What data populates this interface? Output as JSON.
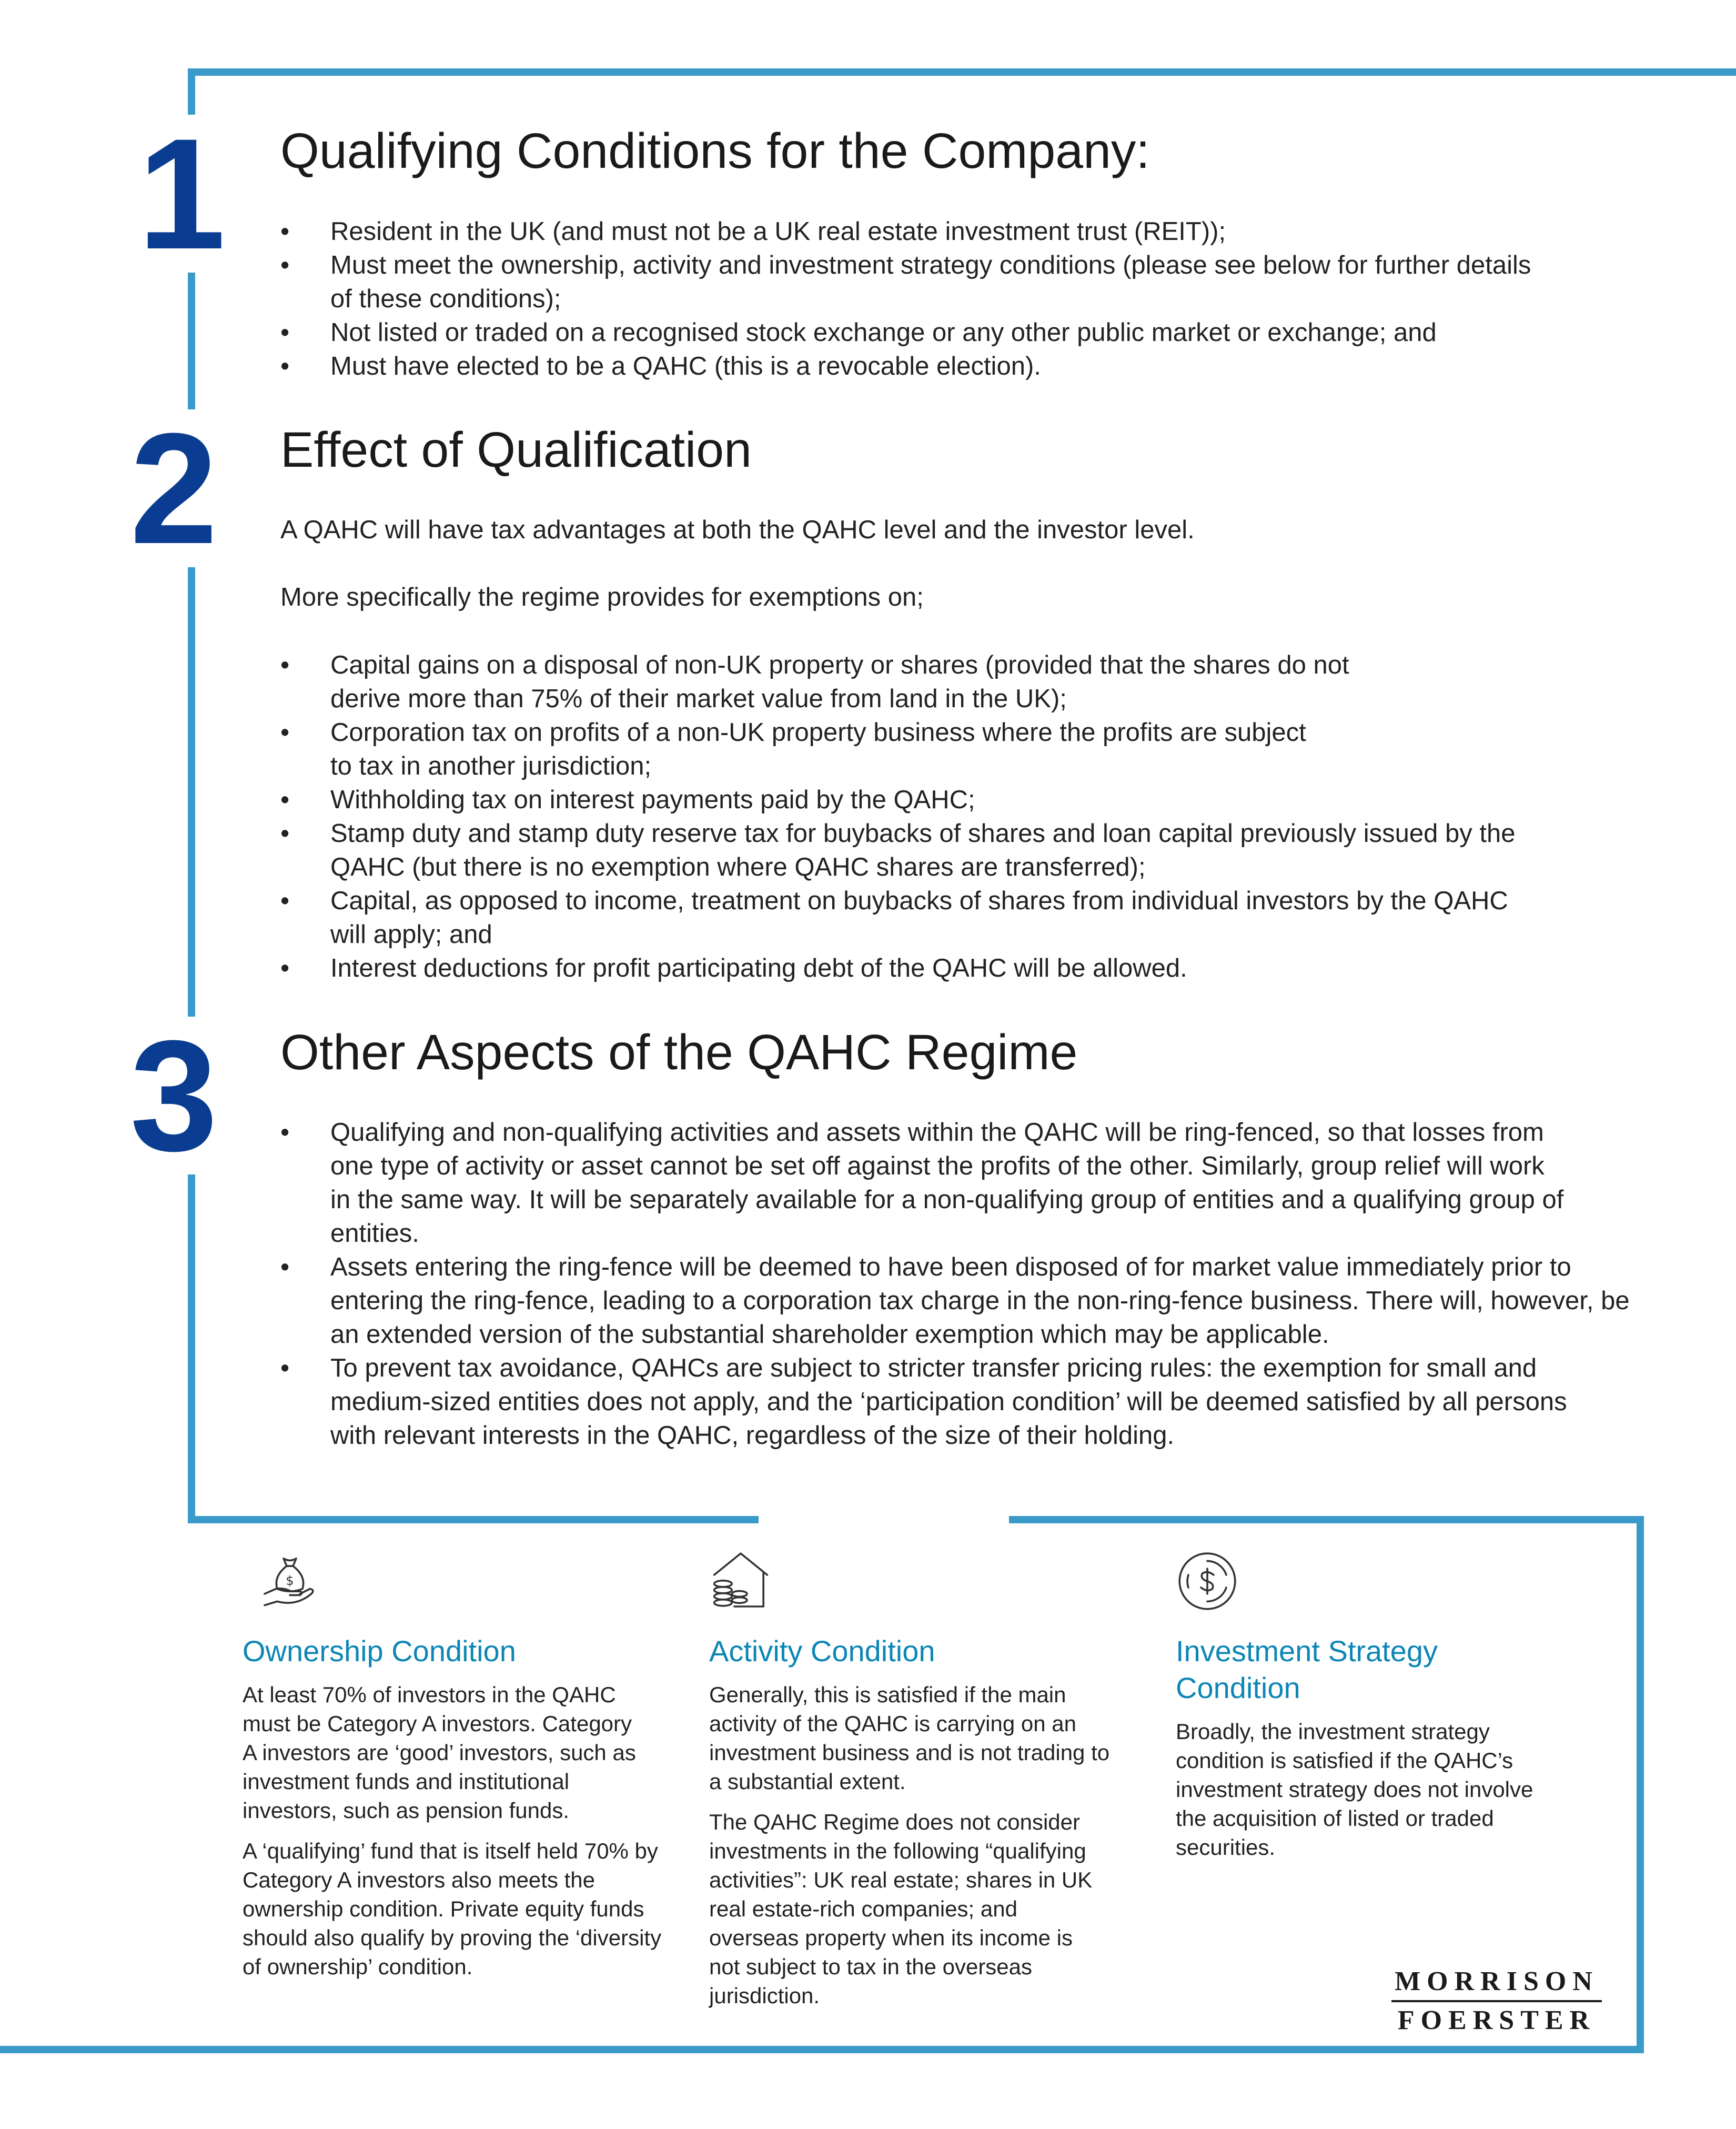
{
  "sections": {
    "qualifying": {
      "number": "1",
      "title": "Qualifying Conditions for the Company:",
      "bullets": [
        "Resident in the UK (and must not be a UK real estate investment trust (REIT));",
        "Must meet the ownership, activity and investment strategy conditions (please see below for further details of these conditions);",
        "Not listed or traded on a recognised stock exchange or any other public market or exchange; and",
        "Must have elected to be a QAHC (this is a revocable election)."
      ]
    },
    "effect": {
      "number": "2",
      "title": "Effect of Qualification",
      "intro": "A QAHC will have tax advantages at both the QAHC level and the investor level.",
      "intro2": "More specifically the regime provides for exemptions on;",
      "bullets": [
        "Capital gains on a disposal of non-UK property or shares (provided that the shares do not derive more than 75% of their market value from land in the UK);",
        "Corporation tax on profits of a non-UK property business where the profits are subject to tax in another jurisdiction;",
        "Withholding tax on interest payments paid by the QAHC;",
        "Stamp duty and stamp duty reserve tax for buybacks of shares and loan capital previously issued by the QAHC (but there is no exemption where QAHC shares are transferred);",
        "Capital, as opposed to income, treatment on buybacks of shares from individual investors by the QAHC will apply; and",
        "Interest deductions for profit participating debt of the QAHC will be allowed."
      ]
    },
    "other": {
      "number": "3",
      "title": "Other Aspects of the QAHC Regime",
      "bullets": [
        "Qualifying and non-qualifying activities and assets within the QAHC will be ring-fenced, so that losses from one type of activity or asset cannot be set off against the profits of the other. Similarly, group relief will work in the same way. It will be separately available for a non-qualifying group of entities and a qualifying group of entities.",
        "Assets entering the ring-fence will be deemed to have been disposed of for market value immediately prior to entering the ring-fence, leading to a corporation tax charge in the non-ring-fence business. There will, however, be an extended version of the substantial shareholder exemption which may be applicable.",
        "To prevent tax avoidance, QAHCs are subject to stricter transfer pricing rules: the exemption for small and medium-sized entities does not apply, and the ‘participation condition’ will be deemed satisfied by all persons with relevant interests in the QAHC, regardless of the size of their holding."
      ]
    }
  },
  "conditions": [
    {
      "icon": "money-bag-hand-icon",
      "title": "Ownership Condition",
      "paragraphs": [
        "At least 70% of investors in the QAHC must be Category A investors. Category A investors are ‘good’ investors, such as investment funds and institutional investors, such as pension funds.",
        "A ‘qualifying’ fund that is itself held 70% by Category A investors also meets the ownership condition. Private equity funds should also qualify by proving the ‘diversity of ownership’ condition."
      ]
    },
    {
      "icon": "house-coins-icon",
      "title": "Activity Condition",
      "paragraphs": [
        "Generally, this is satisfied if the main activity of the QAHC is carrying on an investment business and is not trading to a substantial extent.",
        "The QAHC Regime does not consider investments in the following “qualifying activities”: UK real estate; shares in UK real estate-rich companies; and overseas property when its income is not subject to tax in the overseas jurisdiction."
      ]
    },
    {
      "icon": "dollar-cycle-icon",
      "title": "Investment Strategy Condition",
      "paragraphs": [
        "Broadly, the investment strategy condition is satisfied if the QAHC’s investment strategy does not involve the acquisition of listed or traded securities."
      ]
    }
  ],
  "logo": {
    "line1": "MORRISON",
    "line2": "FOERSTER"
  },
  "colors": {
    "accent_line": "#3a9ac9",
    "number_blue": "#0a3d91",
    "condition_title": "#0d86b5"
  }
}
